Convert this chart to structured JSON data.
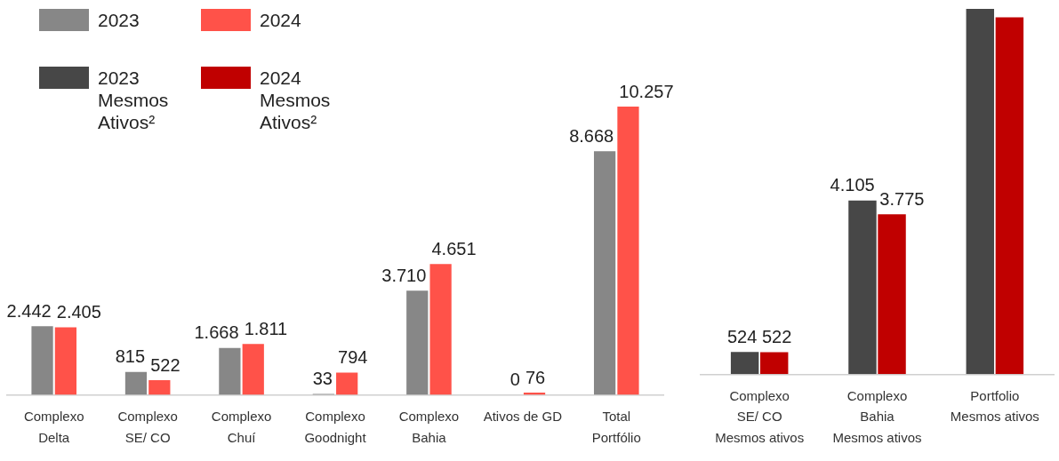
{
  "chart_data": [
    {
      "type": "bar",
      "categories": [
        "Complexo\nDelta",
        "Complexo\nSE/ CO",
        "Complexo\nChuí",
        "Complexo\nGoodnight",
        "Complexo\nBahia",
        "Ativos de GD",
        "Total\nPortfólio"
      ],
      "legend": "top left",
      "series": [
        {
          "name": "2023",
          "color": "#878787",
          "values": [
            2442,
            815,
            1668,
            33,
            3710,
            0,
            8668
          ],
          "value_labels": [
            "2.442",
            "815",
            "1.668",
            "33",
            "3.710",
            "0",
            "8.668"
          ]
        },
        {
          "name": "2024",
          "color": "#ff5249",
          "values": [
            2405,
            522,
            1811,
            794,
            4651,
            76,
            10257
          ],
          "value_labels": [
            "2.405",
            "522",
            "1.811",
            "794",
            "4.651",
            "76",
            "10.257"
          ]
        }
      ]
    },
    {
      "type": "bar",
      "categories": [
        "Complexo\nSE/ CO\nMesmos ativos",
        "Complexo\nBahia\nMesmos ativos",
        "Portfolio\nMesmos ativos"
      ],
      "legend": "top left",
      "series": [
        {
          "name": "2023\nMesmos\nAtivos²",
          "color": "#474747",
          "values": [
            524,
            4105,
            8630
          ],
          "value_labels": [
            "524",
            "4.105",
            null
          ]
        },
        {
          "name": "2024\nMesmos\nAtivos²",
          "color": "#c00000",
          "values": [
            522,
            3775,
            8430
          ],
          "value_labels": [
            "522",
            "3.775",
            null
          ]
        }
      ]
    }
  ]
}
